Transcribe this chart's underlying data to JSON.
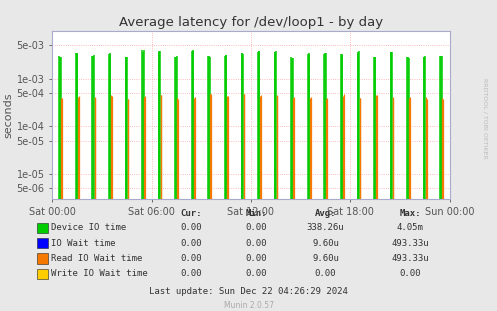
{
  "title": "Average latency for /dev/loop1 - by day",
  "ylabel": "seconds",
  "background_color": "#e8e8e8",
  "plot_background_color": "#ffffff",
  "grid_color": "#ff9999",
  "axis_color": "#aaaacc",
  "title_color": "#333333",
  "x_ticks_labels": [
    "Sat 00:00",
    "Sat 06:00",
    "Sat 12:00",
    "Sat 18:00",
    "Sun 00:00"
  ],
  "y_ticks": [
    5e-06,
    1e-05,
    5e-05,
    0.0001,
    0.0005,
    0.001,
    0.005
  ],
  "y_ticks_labels": [
    "5e-06",
    "1e-05",
    "5e-05",
    "1e-04",
    "5e-04",
    "1e-03",
    "5e-03"
  ],
  "ylim_min": 3e-06,
  "ylim_max": 0.01,
  "xlim_min": 0,
  "xlim_max": 1728,
  "series_colors": [
    "#00cc00",
    "#0000ff",
    "#f57900",
    "#ffcc00"
  ],
  "legend_headers": [
    "Cur:",
    "Min:",
    "Avg:",
    "Max:"
  ],
  "legend_rows": [
    [
      "Device IO time",
      "0.00",
      "0.00",
      "338.26u",
      "4.05m"
    ],
    [
      "IO Wait time",
      "0.00",
      "0.00",
      "9.60u",
      "493.33u"
    ],
    [
      "Read IO Wait time",
      "0.00",
      "0.00",
      "9.60u",
      "493.33u"
    ],
    [
      "Write IO Wait time",
      "0.00",
      "0.00",
      "0.00",
      "0.00"
    ]
  ],
  "munin_text": "Munin 2.0.57",
  "rrdtool_text": "RRDTOOL / TOBI OETIKER",
  "n_spikes": 24,
  "spike_max_green": 0.00405,
  "spike_max_orange": 0.000493,
  "spike_base": 3e-06,
  "last_update": "Last update: Sun Dec 22 04:26:29 2024"
}
